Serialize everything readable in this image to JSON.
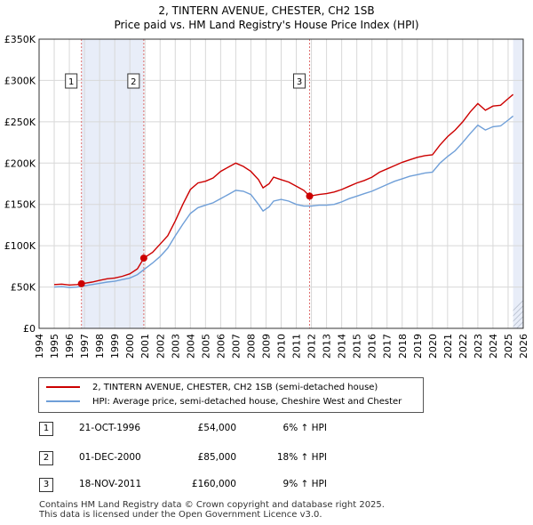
{
  "chart_data": {
    "type": "line",
    "title": "2, TINTERN AVENUE, CHESTER, CH2 1SB",
    "subtitle": "Price paid vs. HM Land Registry's House Price Index (HPI)",
    "xlim": [
      1994,
      2026
    ],
    "ylim": [
      0,
      350000
    ],
    "x_ticks": [
      "1994",
      "1995",
      "1996",
      "1997",
      "1998",
      "1999",
      "2000",
      "2001",
      "2002",
      "2003",
      "2004",
      "2005",
      "2006",
      "2007",
      "2008",
      "2009",
      "2010",
      "2011",
      "2012",
      "2013",
      "2014",
      "2015",
      "2016",
      "2017",
      "2018",
      "2019",
      "2020",
      "2021",
      "2022",
      "2023",
      "2024",
      "2025",
      "2026"
    ],
    "y_ticks": [
      {
        "value": 0,
        "label": "£0"
      },
      {
        "value": 50000,
        "label": "£50K"
      },
      {
        "value": 100000,
        "label": "£100K"
      },
      {
        "value": 150000,
        "label": "£150K"
      },
      {
        "value": 200000,
        "label": "£200K"
      },
      {
        "value": 250000,
        "label": "£250K"
      },
      {
        "value": 300000,
        "label": "£300K"
      },
      {
        "value": 350000,
        "label": "£350K"
      }
    ],
    "data_start": 1995.0,
    "data_end": 2025.33,
    "series": [
      {
        "name": "2, TINTERN AVENUE, CHESTER, CH2 1SB (semi-detached house)",
        "color": "#cc0000",
        "points": [
          [
            1995.0,
            53000
          ],
          [
            1995.5,
            53500
          ],
          [
            1996.0,
            52500
          ],
          [
            1996.5,
            53000
          ],
          [
            1996.8,
            54000
          ],
          [
            1997.5,
            56000
          ],
          [
            1998.0,
            58000
          ],
          [
            1998.5,
            60000
          ],
          [
            1999.0,
            61000
          ],
          [
            1999.5,
            63000
          ],
          [
            2000.0,
            66000
          ],
          [
            2000.5,
            72000
          ],
          [
            2000.92,
            85000
          ],
          [
            2001.5,
            92000
          ],
          [
            2002.0,
            102000
          ],
          [
            2002.5,
            112000
          ],
          [
            2003.0,
            130000
          ],
          [
            2003.5,
            150000
          ],
          [
            2004.0,
            168000
          ],
          [
            2004.5,
            176000
          ],
          [
            2005.0,
            178000
          ],
          [
            2005.5,
            182000
          ],
          [
            2006.0,
            190000
          ],
          [
            2006.5,
            195000
          ],
          [
            2007.0,
            200000
          ],
          [
            2007.5,
            196000
          ],
          [
            2008.0,
            190000
          ],
          [
            2008.5,
            180000
          ],
          [
            2008.8,
            170000
          ],
          [
            2009.2,
            175000
          ],
          [
            2009.5,
            183000
          ],
          [
            2010.0,
            180000
          ],
          [
            2010.5,
            177000
          ],
          [
            2011.0,
            172000
          ],
          [
            2011.5,
            167000
          ],
          [
            2011.88,
            160000
          ],
          [
            2012.5,
            162000
          ],
          [
            2013.0,
            163000
          ],
          [
            2013.5,
            165000
          ],
          [
            2014.0,
            168000
          ],
          [
            2014.5,
            172000
          ],
          [
            2015.0,
            176000
          ],
          [
            2015.5,
            179000
          ],
          [
            2016.0,
            183000
          ],
          [
            2016.5,
            189000
          ],
          [
            2017.0,
            193000
          ],
          [
            2017.5,
            197000
          ],
          [
            2018.0,
            201000
          ],
          [
            2018.5,
            204000
          ],
          [
            2019.0,
            207000
          ],
          [
            2019.5,
            209000
          ],
          [
            2020.0,
            210000
          ],
          [
            2020.5,
            222000
          ],
          [
            2021.0,
            232000
          ],
          [
            2021.5,
            240000
          ],
          [
            2022.0,
            250000
          ],
          [
            2022.5,
            262000
          ],
          [
            2023.0,
            272000
          ],
          [
            2023.5,
            264000
          ],
          [
            2024.0,
            269000
          ],
          [
            2024.5,
            270000
          ],
          [
            2025.0,
            278000
          ],
          [
            2025.33,
            283000
          ]
        ]
      },
      {
        "name": "HPI: Average price, semi-detached house, Cheshire West and Chester",
        "color": "#6f9fd8",
        "points": [
          [
            1995.0,
            50000
          ],
          [
            1995.5,
            50500
          ],
          [
            1996.0,
            49500
          ],
          [
            1996.5,
            50000
          ],
          [
            1997.0,
            51500
          ],
          [
            1997.5,
            53000
          ],
          [
            1998.0,
            54500
          ],
          [
            1998.5,
            56000
          ],
          [
            1999.0,
            57000
          ],
          [
            1999.5,
            59000
          ],
          [
            2000.0,
            61000
          ],
          [
            2000.5,
            65000
          ],
          [
            2001.0,
            72000
          ],
          [
            2001.5,
            79000
          ],
          [
            2002.0,
            87000
          ],
          [
            2002.5,
            97000
          ],
          [
            2003.0,
            112000
          ],
          [
            2003.5,
            126000
          ],
          [
            2004.0,
            139000
          ],
          [
            2004.5,
            146000
          ],
          [
            2005.0,
            149000
          ],
          [
            2005.5,
            152000
          ],
          [
            2006.0,
            157000
          ],
          [
            2006.5,
            162000
          ],
          [
            2007.0,
            167000
          ],
          [
            2007.5,
            166000
          ],
          [
            2008.0,
            162000
          ],
          [
            2008.5,
            150000
          ],
          [
            2008.8,
            142000
          ],
          [
            2009.2,
            147000
          ],
          [
            2009.5,
            154000
          ],
          [
            2010.0,
            156000
          ],
          [
            2010.5,
            154000
          ],
          [
            2011.0,
            150000
          ],
          [
            2011.5,
            148000
          ],
          [
            2012.0,
            148000
          ],
          [
            2012.5,
            149000
          ],
          [
            2013.0,
            149000
          ],
          [
            2013.5,
            150000
          ],
          [
            2014.0,
            153000
          ],
          [
            2014.5,
            157000
          ],
          [
            2015.0,
            160000
          ],
          [
            2015.5,
            163000
          ],
          [
            2016.0,
            166000
          ],
          [
            2016.5,
            170000
          ],
          [
            2017.0,
            174000
          ],
          [
            2017.5,
            178000
          ],
          [
            2018.0,
            181000
          ],
          [
            2018.5,
            184000
          ],
          [
            2019.0,
            186000
          ],
          [
            2019.5,
            188000
          ],
          [
            2020.0,
            189000
          ],
          [
            2020.5,
            200000
          ],
          [
            2021.0,
            208000
          ],
          [
            2021.5,
            215000
          ],
          [
            2022.0,
            225000
          ],
          [
            2022.5,
            236000
          ],
          [
            2023.0,
            246000
          ],
          [
            2023.5,
            240000
          ],
          [
            2024.0,
            244000
          ],
          [
            2024.5,
            245000
          ],
          [
            2025.0,
            252000
          ],
          [
            2025.33,
            257000
          ]
        ]
      }
    ],
    "sale_markers": [
      {
        "label": "1",
        "x": 1996.8,
        "price": 54000
      },
      {
        "label": "2",
        "x": 2000.92,
        "price": 85000
      },
      {
        "label": "3",
        "x": 2011.88,
        "price": 160000
      }
    ]
  },
  "legend": {
    "items": [
      {
        "label": "2, TINTERN AVENUE, CHESTER, CH2 1SB (semi-detached house)",
        "color": "#cc0000"
      },
      {
        "label": "HPI: Average price, semi-detached house, Cheshire West and Chester",
        "color": "#6f9fd8"
      }
    ]
  },
  "sales": [
    {
      "num": "1",
      "date": "21-OCT-1996",
      "price": "£54,000",
      "hpi": "6% ↑ HPI"
    },
    {
      "num": "2",
      "date": "01-DEC-2000",
      "price": "£85,000",
      "hpi": "18% ↑ HPI"
    },
    {
      "num": "3",
      "date": "18-NOV-2011",
      "price": "£160,000",
      "hpi": "9% ↑ HPI"
    }
  ],
  "footer": {
    "line1": "Contains HM Land Registry data © Crown copyright and database right 2025.",
    "line2": "This data is licensed under the Open Government Licence v3.0."
  }
}
